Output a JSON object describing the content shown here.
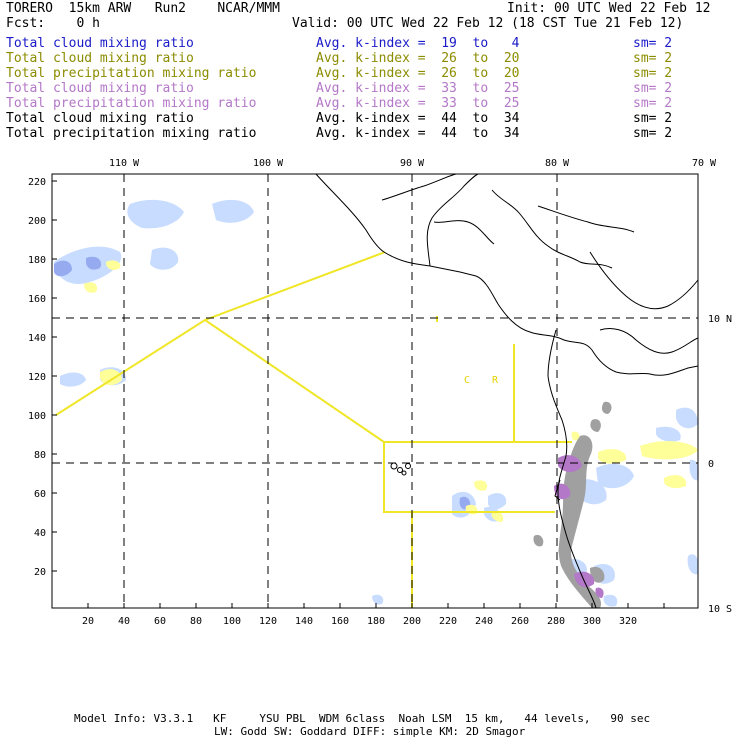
{
  "header": {
    "model": "TORERO  15km ARW   Run2    NCAR/MMM",
    "init": "Init: 00 UTC Wed 22 Feb 12",
    "fcst": "Fcst:    0 h",
    "valid": "Valid: 00 UTC Wed 22 Feb 12 (18 CST Tue 21 Feb 12)"
  },
  "legend": [
    {
      "field": "Total cloud mixing ratio",
      "kindex": "Avg. k-index =  19  to   4",
      "sm": "sm= 2",
      "color": "#1a1ac8"
    },
    {
      "field": "Total cloud mixing ratio",
      "kindex": "Avg. k-index =  26  to  20",
      "sm": "sm= 2",
      "color": "#8c8c00"
    },
    {
      "field": "Total precipitation mixing ratio",
      "kindex": "Avg. k-index =  26  to  20",
      "sm": "sm= 2",
      "color": "#8c8c00"
    },
    {
      "field": "Total cloud mixing ratio",
      "kindex": "Avg. k-index =  33  to  25",
      "sm": "sm= 2",
      "color": "#b478c8"
    },
    {
      "field": "Total precipitation mixing ratio",
      "kindex": "Avg. k-index =  33  to  25",
      "sm": "sm= 2",
      "color": "#b478c8"
    },
    {
      "field": "Total cloud mixing ratio",
      "kindex": "Avg. k-index =  44  to  34",
      "sm": "sm= 2",
      "color": "#000000"
    },
    {
      "field": "Total precipitation mixing ratio",
      "kindex": "Avg. k-index =  44  to  34",
      "sm": "sm= 2",
      "color": "#000000"
    }
  ],
  "map": {
    "lon_labels": [
      "110 W",
      "100 W",
      "90 W",
      "80 W",
      "70 W"
    ],
    "lat_labels": [
      "10 N",
      "0",
      "10 S"
    ],
    "x_ticks": [
      "20",
      "40",
      "60",
      "80",
      "100",
      "120",
      "140",
      "160",
      "180",
      "200",
      "220",
      "240",
      "260",
      "280",
      "300",
      "320"
    ],
    "y_ticks": [
      "220",
      "200",
      "180",
      "160",
      "140",
      "120",
      "100",
      "80",
      "60",
      "40",
      "20"
    ],
    "region_labels": [
      "C",
      "R"
    ],
    "colors": {
      "light_blue": "#c8dcff",
      "blue": "#96aaf0",
      "yellow": "#ffff9a",
      "gray": "#a0a0a0",
      "purple": "#b478c8",
      "box_line": "#f0e628"
    }
  },
  "footer": {
    "line1": "Model Info: V3.3.1   KF     YSU PBL  WDM 6class  Noah LSM  15 km,   44 levels,   90 sec",
    "line2": "LW: Godd SW: Goddard DIFF: simple KM: 2D Smagor"
  }
}
